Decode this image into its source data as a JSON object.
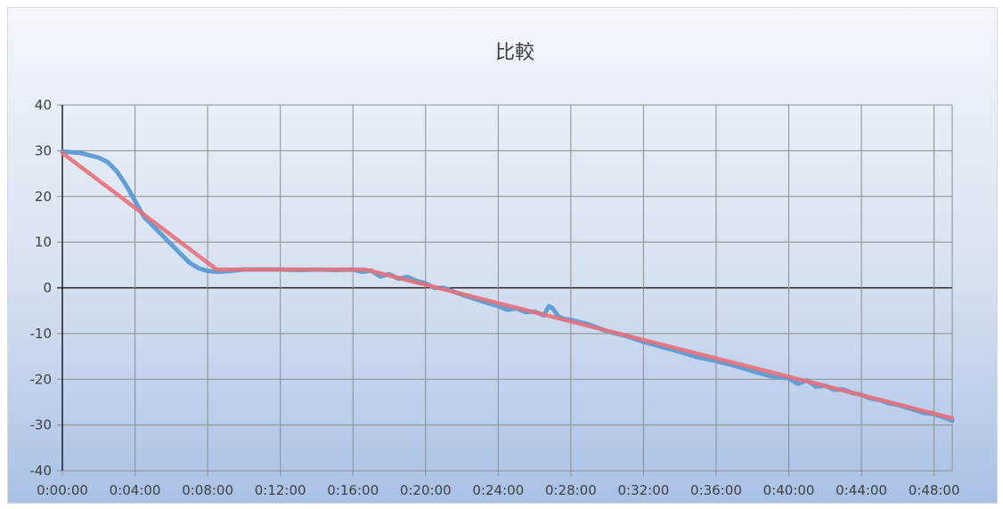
{
  "chart_data": {
    "type": "line",
    "title": "比較",
    "xlabel": "",
    "ylabel": "",
    "xlim": [
      0,
      49
    ],
    "ylim": [
      -40,
      40
    ],
    "x_unit": "minutes",
    "x_ticks": [
      "0:00:00",
      "0:04:00",
      "0:08:00",
      "0:12:00",
      "0:16:00",
      "0:20:00",
      "0:24:00",
      "0:28:00",
      "0:32:00",
      "0:36:00",
      "0:40:00",
      "0:44:00",
      "0:48:00"
    ],
    "y_ticks": [
      "40",
      "30",
      "20",
      "10",
      "0",
      "-10",
      "-20",
      "-30",
      "-40"
    ],
    "grid": true,
    "legend": "none",
    "series": [
      {
        "color": "#5b9bd5",
        "x": [
          0,
          1,
          2,
          2.5,
          3,
          3.5,
          4,
          4.5,
          5,
          5.5,
          6,
          6.5,
          7,
          7.5,
          8,
          8.5,
          9,
          10,
          11,
          12,
          13,
          14,
          15,
          16,
          16.5,
          17,
          17.5,
          18,
          18.5,
          19,
          19.5,
          20,
          20.5,
          21,
          22,
          23,
          24,
          24.5,
          25,
          25.5,
          26,
          26.5,
          26.8,
          27,
          27.3,
          27.6,
          28,
          29,
          30,
          31,
          32,
          33,
          34,
          35,
          36,
          37,
          38,
          39,
          40,
          40.5,
          41,
          41.5,
          42,
          42.5,
          43,
          43.5,
          44,
          44.5,
          45,
          45.5,
          46,
          46.5,
          47,
          47.5,
          48,
          48.5,
          49
        ],
        "y": [
          29.8,
          29.5,
          28.5,
          27.5,
          25.5,
          22.5,
          19,
          15.5,
          13.5,
          11.5,
          9.5,
          7.5,
          5.5,
          4.3,
          3.7,
          3.5,
          3.6,
          4.0,
          4.0,
          4.0,
          3.9,
          4.0,
          3.9,
          4.0,
          3.5,
          3.8,
          2.5,
          3.0,
          2.0,
          2.4,
          1.5,
          1.0,
          0.0,
          0.0,
          -1.5,
          -2.8,
          -4.0,
          -4.8,
          -4.5,
          -5.3,
          -5.2,
          -6.0,
          -4.0,
          -4.5,
          -6.2,
          -6.8,
          -7.0,
          -8.0,
          -9.5,
          -10.5,
          -11.8,
          -12.9,
          -14.0,
          -15.2,
          -16.0,
          -17.0,
          -18.2,
          -19.3,
          -19.8,
          -21.0,
          -20.2,
          -21.6,
          -21.4,
          -22.3,
          -22.2,
          -23.0,
          -23.4,
          -24.2,
          -24.5,
          -25.2,
          -25.6,
          -26.2,
          -26.8,
          -27.4,
          -27.6,
          -28.3,
          -29.0
        ]
      },
      {
        "color": "#e8707a",
        "x": [
          0,
          8.5,
          16.7,
          49
        ],
        "y": [
          29.5,
          4.0,
          4.0,
          -28.5
        ]
      }
    ]
  }
}
